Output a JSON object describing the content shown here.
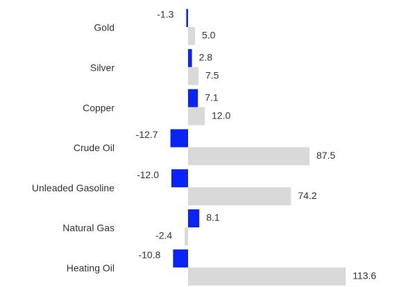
{
  "chart_data": {
    "type": "bar",
    "orientation": "horizontal",
    "categories": [
      "Gold",
      "Silver",
      "Copper",
      "Crude Oil",
      "Unleaded Gasoline",
      "Natural Gas",
      "Heating Oil"
    ],
    "series": [
      {
        "color": "#0a24f5",
        "values": [
          -1.3,
          2.8,
          7.1,
          -12.7,
          -12.0,
          8.1,
          -10.8
        ],
        "value_labels": [
          "-1.3",
          "2.8",
          "7.1",
          "-12.7",
          "-12.0",
          "8.1",
          "-10.8"
        ]
      },
      {
        "color": "#d9d9d9",
        "values": [
          5.0,
          7.5,
          12.0,
          87.5,
          74.2,
          -2.4,
          113.6
        ],
        "value_labels": [
          "5.0",
          "7.5",
          "12.0",
          "87.5",
          "74.2",
          "-2.4",
          "113.6"
        ]
      }
    ]
  }
}
